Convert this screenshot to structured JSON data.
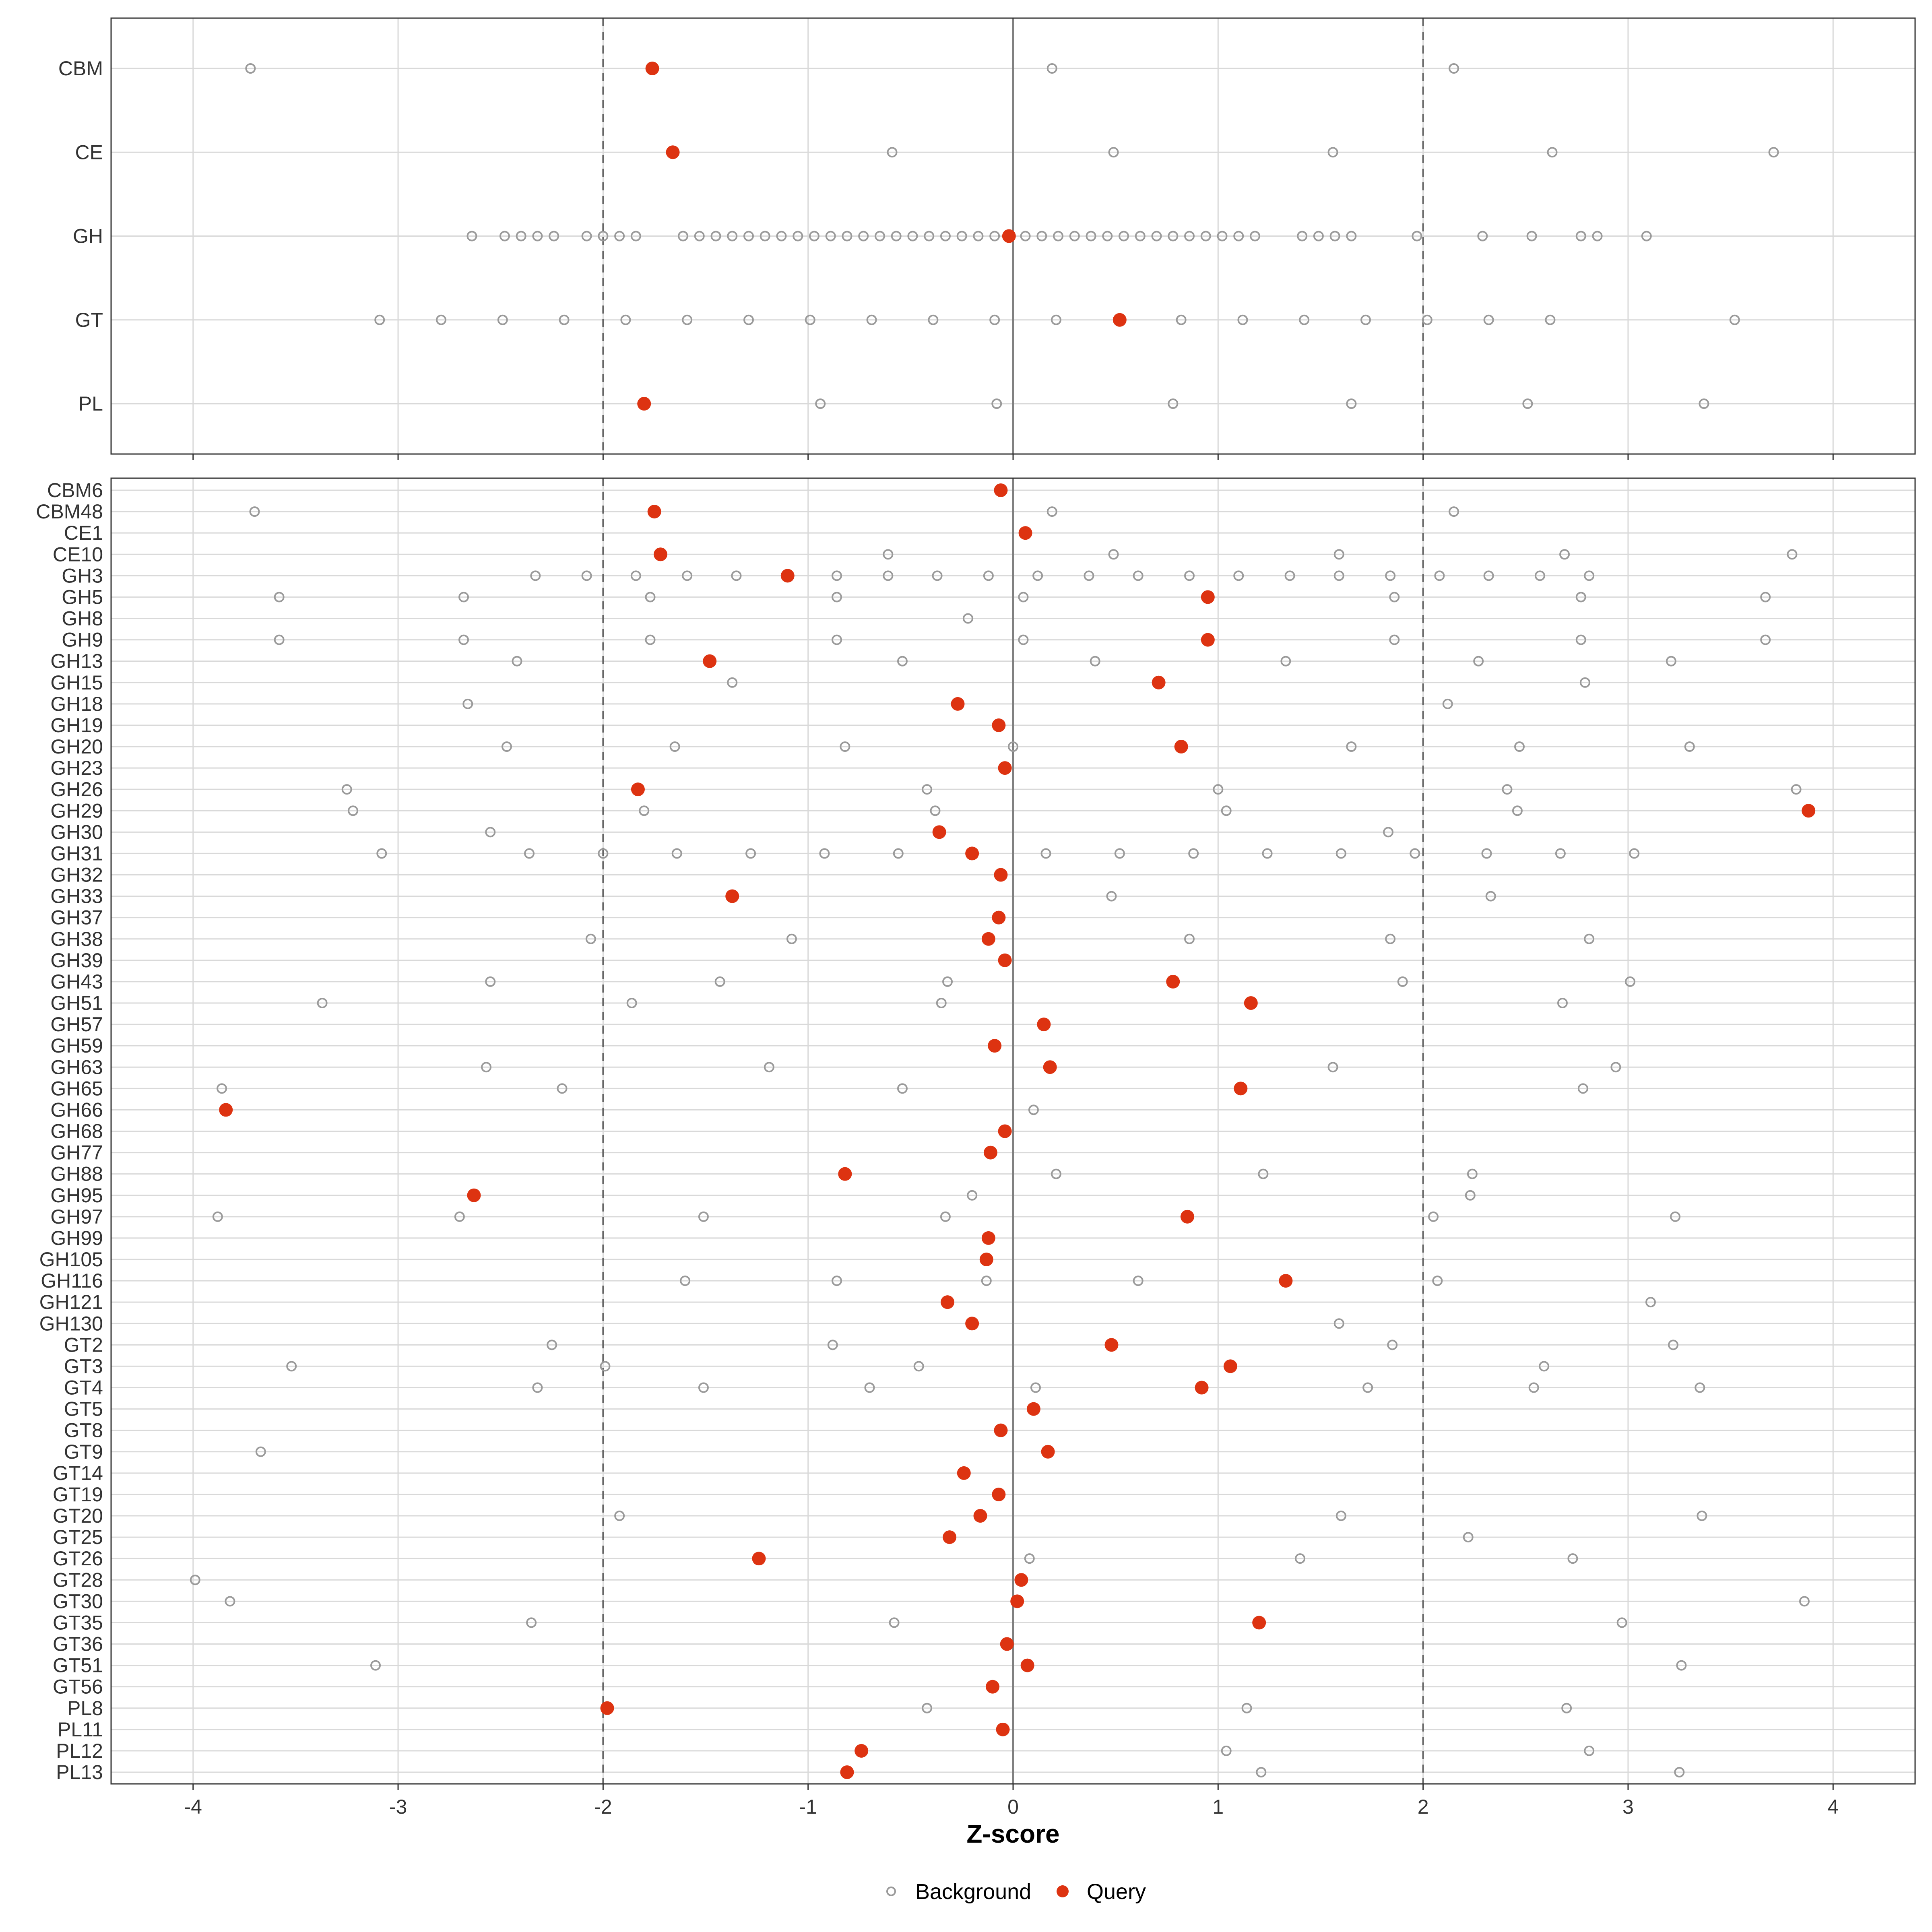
{
  "chart_data": [
    {
      "type": "scatter",
      "panel": "top",
      "xlim": [
        -4.4,
        4.4
      ],
      "categories": [
        "CBM",
        "CE",
        "GH",
        "GT",
        "PL"
      ],
      "background": {
        "CBM": [
          -3.72,
          0.19,
          2.15
        ],
        "CE": [
          -0.59,
          0.49,
          1.56,
          2.63,
          3.71
        ],
        "GH": [
          -2.64,
          -2.48,
          -2.4,
          -2.32,
          -2.24,
          -2.08,
          -2.0,
          -1.92,
          -1.84,
          -1.61,
          -1.53,
          -1.45,
          -1.37,
          -1.29,
          -1.21,
          -1.13,
          -1.05,
          -0.97,
          -0.89,
          -0.81,
          -0.73,
          -0.65,
          -0.57,
          -0.49,
          -0.41,
          -0.33,
          -0.25,
          -0.17,
          -0.09,
          0.06,
          0.14,
          0.22,
          0.3,
          0.38,
          0.46,
          0.54,
          0.62,
          0.7,
          0.78,
          0.86,
          0.94,
          1.02,
          1.1,
          1.18,
          1.41,
          1.49,
          1.57,
          1.65,
          1.97,
          2.29,
          2.53,
          2.77,
          2.85,
          3.09
        ],
        "GT": [
          -3.09,
          -2.79,
          -2.49,
          -2.19,
          -1.89,
          -1.59,
          -1.29,
          -0.99,
          -0.69,
          -0.39,
          -0.09,
          0.21,
          0.82,
          1.12,
          1.42,
          1.72,
          2.02,
          2.32,
          2.62,
          3.52
        ],
        "PL": [
          -0.94,
          -0.08,
          0.78,
          1.65,
          2.51,
          3.37
        ]
      },
      "query": {
        "CBM": -1.76,
        "CE": -1.66,
        "GH": -0.02,
        "GT": 0.52,
        "PL": -1.8
      },
      "reference_lines": {
        "solid": [
          0
        ],
        "dashed": [
          -2,
          2
        ]
      }
    },
    {
      "type": "scatter",
      "panel": "bottom",
      "xlim": [
        -4.4,
        4.4
      ],
      "xlabel": "Z-score",
      "xticks": [
        -4,
        -3,
        -2,
        -1,
        0,
        1,
        2,
        3,
        4
      ],
      "xtick_labels": [
        "-4",
        "-3",
        "-2",
        "-1",
        "0",
        "1",
        "2",
        "3",
        "4"
      ],
      "categories": [
        "CBM6",
        "CBM48",
        "CE1",
        "CE10",
        "GH3",
        "GH5",
        "GH8",
        "GH9",
        "GH13",
        "GH15",
        "GH18",
        "GH19",
        "GH20",
        "GH23",
        "GH26",
        "GH29",
        "GH30",
        "GH31",
        "GH32",
        "GH33",
        "GH37",
        "GH38",
        "GH39",
        "GH43",
        "GH51",
        "GH57",
        "GH59",
        "GH63",
        "GH65",
        "GH66",
        "GH68",
        "GH77",
        "GH88",
        "GH95",
        "GH97",
        "GH99",
        "GH105",
        "GH116",
        "GH121",
        "GH130",
        "GT2",
        "GT3",
        "GT4",
        "GT5",
        "GT8",
        "GT9",
        "GT14",
        "GT19",
        "GT20",
        "GT25",
        "GT26",
        "GT28",
        "GT30",
        "GT35",
        "GT36",
        "GT51",
        "GT56",
        "PL8",
        "PL11",
        "PL12",
        "PL13"
      ],
      "background": {
        "CBM48": [
          -3.7,
          0.19,
          2.15
        ],
        "CE10": [
          -0.61,
          0.49,
          1.59,
          2.69,
          3.8
        ],
        "GH3": [
          -2.33,
          -2.08,
          -1.84,
          -1.59,
          -1.35,
          -0.86,
          -0.61,
          -0.37,
          -0.12,
          0.12,
          0.37,
          0.61,
          0.86,
          1.1,
          1.35,
          1.59,
          1.84,
          2.08,
          2.32,
          2.57,
          2.81
        ],
        "GH5": [
          -3.58,
          -2.68,
          -1.77,
          -0.86,
          0.05,
          1.86,
          2.77,
          3.67
        ],
        "GH8": [
          -0.22
        ],
        "GH9": [
          -3.58,
          -2.68,
          -1.77,
          -0.86,
          0.05,
          1.86,
          2.77,
          3.67
        ],
        "GH13": [
          -2.42,
          -0.54,
          0.4,
          1.33,
          2.27,
          3.21
        ],
        "GH15": [
          -1.37,
          2.79
        ],
        "GH18": [
          -2.66,
          2.12
        ],
        "GH20": [
          -2.47,
          -1.65,
          -0.82,
          0.0,
          1.65,
          2.47,
          3.3
        ],
        "GH26": [
          -3.25,
          -0.42,
          1.0,
          2.41,
          3.82
        ],
        "GH29": [
          -3.22,
          -1.8,
          -0.38,
          1.04,
          2.46
        ],
        "GH30": [
          -2.55,
          1.83
        ],
        "GH31": [
          -3.08,
          -2.36,
          -2.0,
          -1.64,
          -1.28,
          -0.92,
          -0.56,
          0.16,
          0.52,
          0.88,
          1.24,
          1.6,
          1.96,
          2.31,
          2.67,
          3.03
        ],
        "GH33": [
          0.48,
          2.33
        ],
        "GH38": [
          -2.06,
          -1.08,
          0.86,
          1.84,
          2.81
        ],
        "GH43": [
          -2.55,
          -1.43,
          -0.32,
          1.9,
          3.01
        ],
        "GH51": [
          -3.37,
          -1.86,
          -0.35,
          2.68
        ],
        "GH63": [
          -2.57,
          -1.19,
          1.56,
          2.94
        ],
        "GH65": [
          -3.86,
          -2.2,
          -0.54,
          2.78
        ],
        "GH66": [
          0.1
        ],
        "GH88": [
          0.21,
          1.22,
          2.24
        ],
        "GH95": [
          -0.2,
          2.23
        ],
        "GH97": [
          -3.88,
          -2.7,
          -1.51,
          -0.33,
          2.05,
          3.23
        ],
        "GH116": [
          -1.6,
          -0.86,
          -0.13,
          0.61,
          2.07
        ],
        "GH121": [
          3.11
        ],
        "GH130": [
          1.59
        ],
        "GT2": [
          -2.25,
          -0.88,
          1.85,
          3.22
        ],
        "GT3": [
          -3.52,
          -1.99,
          -0.46,
          2.59
        ],
        "GT4": [
          -2.32,
          -1.51,
          -0.7,
          0.11,
          1.73,
          2.54,
          3.35
        ],
        "GT9": [
          -3.67
        ],
        "GT20": [
          -1.92,
          1.6,
          3.36
        ],
        "GT25": [
          2.22
        ],
        "GT26": [
          0.08,
          1.4,
          2.73
        ],
        "GT28": [
          -3.99
        ],
        "GT30": [
          -3.82,
          3.86
        ],
        "GT35": [
          -2.35,
          -0.58,
          2.97
        ],
        "GT51": [
          -3.11,
          3.26
        ],
        "PL8": [
          -0.42,
          1.14,
          2.7
        ],
        "PL12": [
          1.04,
          2.81
        ],
        "PL13": [
          1.21,
          3.25
        ]
      },
      "query": {
        "CBM6": -0.06,
        "CBM48": -1.75,
        "CE1": 0.06,
        "CE10": -1.72,
        "GH3": -1.1,
        "GH5": 0.95,
        "GH9": 0.95,
        "GH13": -1.48,
        "GH15": 0.71,
        "GH18": -0.27,
        "GH19": -0.07,
        "GH20": 0.82,
        "GH23": -0.04,
        "GH26": -1.83,
        "GH29": 3.88,
        "GH30": -0.36,
        "GH31": -0.2,
        "GH32": -0.06,
        "GH33": -1.37,
        "GH37": -0.07,
        "GH38": -0.12,
        "GH39": -0.04,
        "GH43": 0.78,
        "GH51": 1.16,
        "GH57": 0.15,
        "GH59": -0.09,
        "GH63": 0.18,
        "GH65": 1.11,
        "GH66": -3.84,
        "GH68": -0.04,
        "GH77": -0.11,
        "GH88": -0.82,
        "GH95": -2.63,
        "GH97": 0.85,
        "GH99": -0.12,
        "GH105": -0.13,
        "GH116": 1.33,
        "GH121": -0.32,
        "GH130": -0.2,
        "GT2": 0.48,
        "GT3": 1.06,
        "GT4": 0.92,
        "GT5": 0.1,
        "GT8": -0.06,
        "GT9": 0.17,
        "GT14": -0.24,
        "GT19": -0.07,
        "GT20": -0.16,
        "GT25": -0.31,
        "GT26": -1.24,
        "GT28": 0.04,
        "GT30": 0.02,
        "GT35": 1.2,
        "GT36": -0.03,
        "GT51": 0.07,
        "GT56": -0.1,
        "PL8": -1.98,
        "PL11": -0.05,
        "PL12": -0.74,
        "PL13": -0.81
      },
      "reference_lines": {
        "solid": [
          0
        ],
        "dashed": [
          -2,
          2
        ]
      }
    }
  ],
  "legend": {
    "placement": "bottom",
    "entries": [
      {
        "label": "Background",
        "marker": "open-circle",
        "color": "#999999"
      },
      {
        "label": "Query",
        "marker": "filled-circle",
        "color": "#dd3311"
      }
    ]
  },
  "colors": {
    "background_point": "#9a9a9a",
    "query_point": "#dd3311",
    "grid": "#d9d9d9",
    "panel_border": "#333333",
    "zero_line": "#808080",
    "dashed_line": "#666666"
  }
}
